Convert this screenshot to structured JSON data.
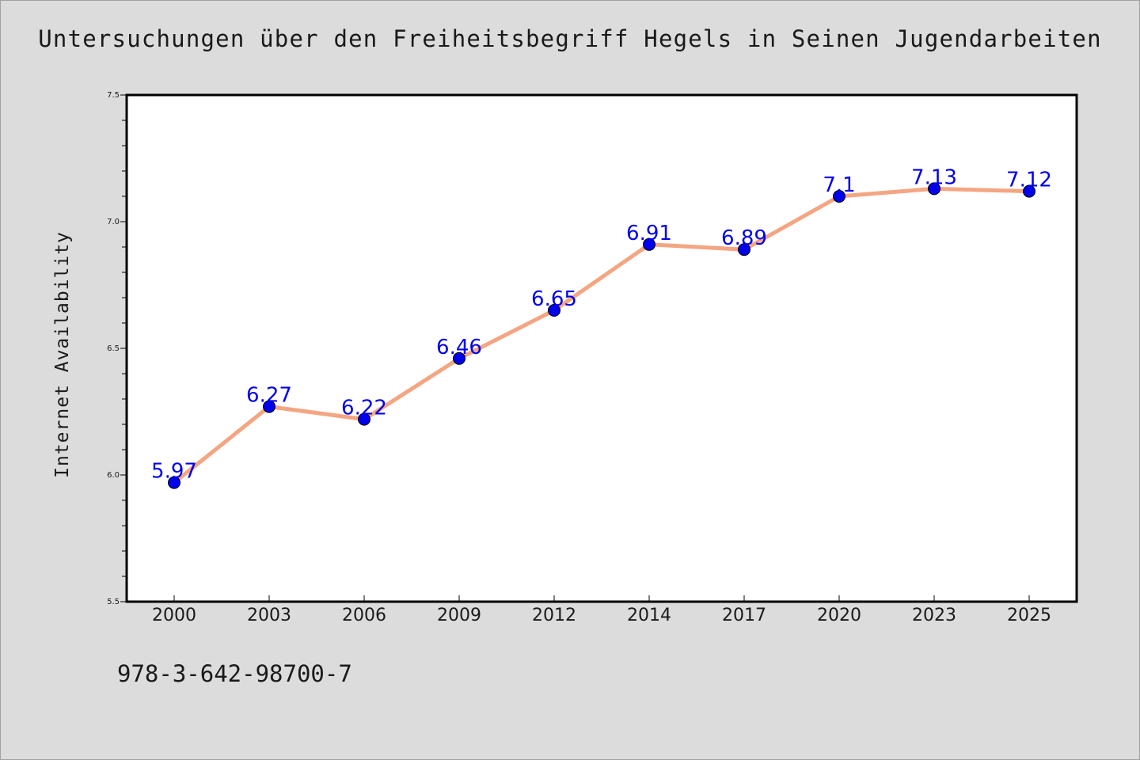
{
  "title": "Untersuchungen über den Freiheitsbegriff Hegels in Seinen Jugendarbeiten",
  "footer_code": "978-3-642-98700-7",
  "colors": {
    "background": "#dcdcdc",
    "plot_background": "#ffffff",
    "line": "#f4a582",
    "marker": "#0000ee",
    "data_label": "#0000ee"
  },
  "chart_data": {
    "type": "line",
    "title": "Untersuchungen über den Freiheitsbegriff Hegels in Seinen Jugendarbeiten",
    "xlabel": "",
    "ylabel": "Internet Availability",
    "categories": [
      "2000",
      "2003",
      "2006",
      "2009",
      "2012",
      "2014",
      "2017",
      "2020",
      "2023",
      "2025"
    ],
    "series": [
      {
        "values": [
          5.97,
          6.27,
          6.22,
          6.46,
          6.65,
          6.91,
          6.89,
          7.1,
          7.13,
          7.12
        ],
        "labels": [
          "5.97",
          "6.27",
          "6.22",
          "6.46",
          "6.65",
          "6.91",
          "6.89",
          "7.1",
          "7.13",
          "7.12"
        ]
      }
    ],
    "ylim": [
      5.5,
      7.5
    ],
    "yticks": [
      "5.5",
      "6.0",
      "6.5",
      "7.0",
      "7.5"
    ],
    "grid": false,
    "legend": "none"
  }
}
